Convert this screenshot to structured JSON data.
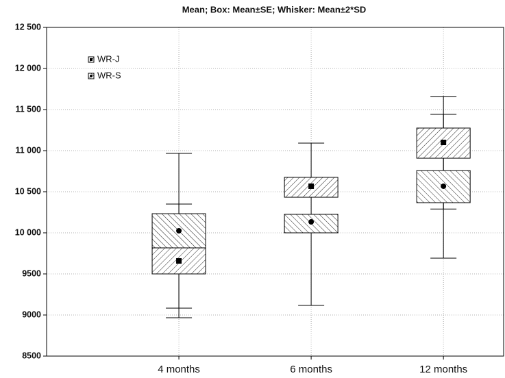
{
  "chart_data": {
    "type": "box",
    "title": "Mean; Box: Mean±SE; Whisker: Mean±2*SD",
    "categories": [
      "4 months",
      "6 months",
      "12 months"
    ],
    "ylim": [
      8500,
      12500
    ],
    "yticks": [
      {
        "value": 8500,
        "label": "8500"
      },
      {
        "value": 9000,
        "label": "9000"
      },
      {
        "value": 9500,
        "label": "9500"
      },
      {
        "value": 10000,
        "label": "10 000"
      },
      {
        "value": 10500,
        "label": "10 500"
      },
      {
        "value": 11000,
        "label": "11 000"
      },
      {
        "value": 11500,
        "label": "11 500"
      },
      {
        "value": 12000,
        "label": "12 000"
      },
      {
        "value": 12500,
        "label": "12 500"
      }
    ],
    "grid": true,
    "legend": "top-left",
    "series": [
      {
        "name": "WR-J",
        "marker": "square",
        "hatch": "back",
        "color": "#000000",
        "values": [
          9658,
          10567,
          11100
        ],
        "box_low": [
          9500,
          10433,
          10908
        ],
        "box_high": [
          9817,
          10675,
          11275
        ],
        "whisker_low": [
          8967,
          10475,
          10290
        ],
        "whisker_high": [
          10350,
          10660,
          11660
        ]
      },
      {
        "name": "WR-S",
        "marker": "circle",
        "hatch": "fwd",
        "color": "#000000",
        "values": [
          10025,
          10133,
          10567
        ],
        "box_low": [
          9817,
          10000,
          10367
        ],
        "box_high": [
          10233,
          10225,
          10758
        ],
        "whisker_low": [
          9083,
          9117,
          9692
        ],
        "whisker_high": [
          10967,
          11092,
          11442
        ]
      }
    ]
  }
}
